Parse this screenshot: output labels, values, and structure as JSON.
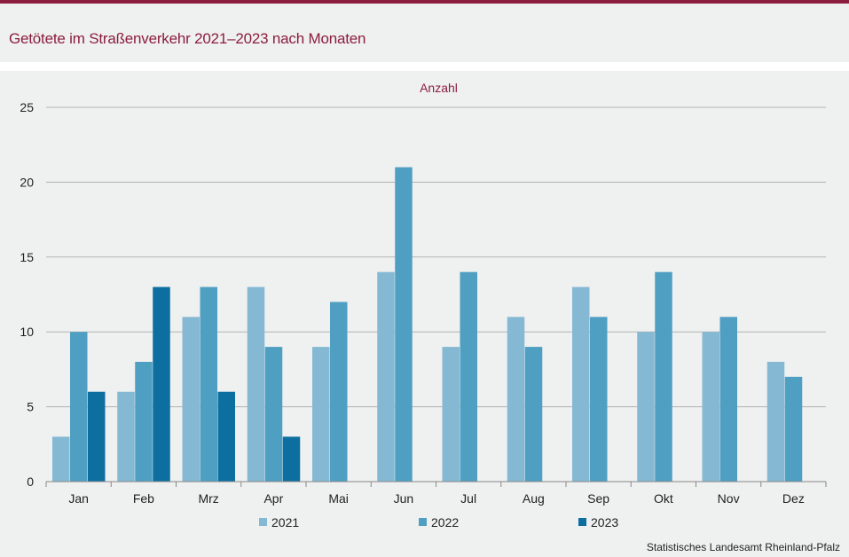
{
  "header": {
    "title": "Getötete im Straßenverkehr 2021–2023 nach Monaten"
  },
  "source": "Statistisches Landesamt  Rheinland-Pfalz",
  "colors": {
    "accent": "#8b1e3f",
    "series_2021": "#85b9d3",
    "series_2022": "#4f9fc2",
    "series_2023": "#0d6fa0"
  },
  "chart_data": {
    "type": "bar",
    "title": "Getötete im Straßenverkehr 2021–2023 nach Monaten",
    "ylabel": "Anzahl",
    "xlabel": "",
    "ylim": [
      0,
      25
    ],
    "yticks": [
      0,
      5,
      10,
      15,
      20,
      25
    ],
    "grid": true,
    "legend": "bottom",
    "categories": [
      "Jan",
      "Feb",
      "Mrz",
      "Apr",
      "Mai",
      "Jun",
      "Jul",
      "Aug",
      "Sep",
      "Okt",
      "Nov",
      "Dez"
    ],
    "series": [
      {
        "name": "2021",
        "values": [
          3,
          6,
          11,
          13,
          9,
          14,
          9,
          11,
          13,
          10,
          10,
          8
        ]
      },
      {
        "name": "2022",
        "values": [
          10,
          8,
          13,
          9,
          12,
          21,
          14,
          9,
          11,
          14,
          11,
          7
        ]
      },
      {
        "name": "2023",
        "values": [
          6,
          13,
          6,
          3,
          null,
          null,
          null,
          null,
          null,
          null,
          null,
          null
        ]
      }
    ]
  }
}
